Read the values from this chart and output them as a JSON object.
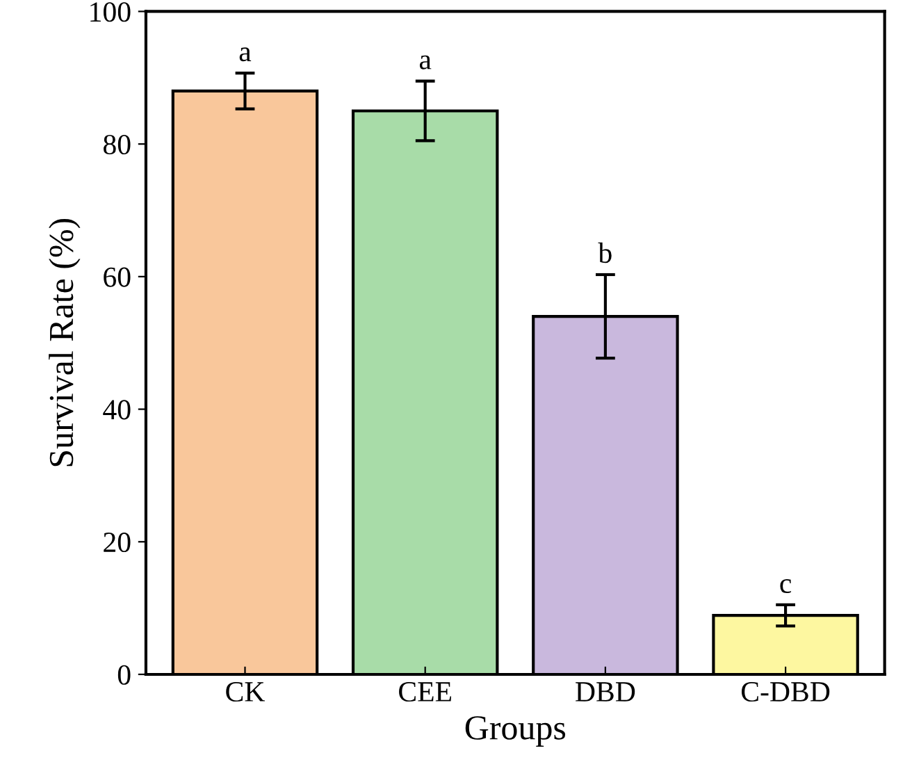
{
  "chart_data": {
    "type": "bar",
    "xlabel": "Groups",
    "ylabel": "Survival Rate (%)",
    "categories": [
      "CK",
      "CEE",
      "DBD",
      "C-DBD"
    ],
    "values": [
      88,
      85,
      54,
      8.9
    ],
    "errors": [
      2.7,
      4.5,
      6.3,
      1.6
    ],
    "colors": [
      "#f9c79b",
      "#a8dca8",
      "#c9b8dd",
      "#fdf7a0"
    ],
    "ylim": [
      0,
      100
    ],
    "yticks": [
      0,
      20,
      40,
      60,
      80,
      100
    ],
    "grid": false,
    "annotations": [
      {
        "text": "a",
        "x": "CK",
        "y": 90.7
      },
      {
        "text": "a",
        "x": "CEE",
        "y": 89.5
      },
      {
        "text": "b",
        "x": "DBD",
        "y": 60.3
      },
      {
        "text": "c",
        "x": "C-DBD",
        "y": 10.5
      }
    ]
  }
}
